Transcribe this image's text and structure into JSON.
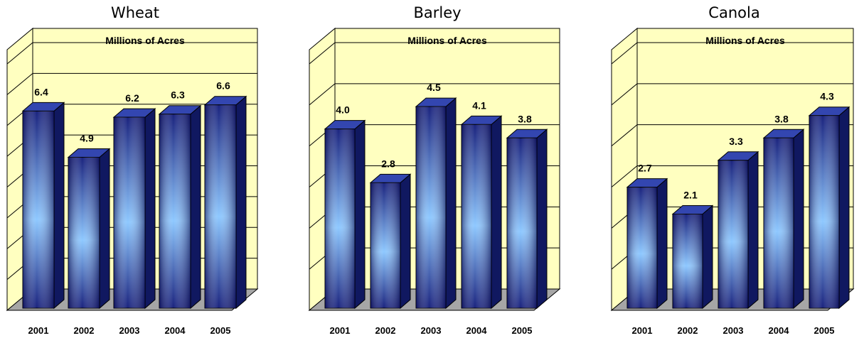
{
  "colors": {
    "wall": "#FFFFC0",
    "floor": "#A6A6A6",
    "grid": "#000000",
    "bar_front_dark": "#1A237E",
    "bar_front_light": "#8EC8FF",
    "bar_side": "#101860",
    "bar_top": "#3346B0"
  },
  "chart_data": [
    {
      "type": "bar",
      "title": "Wheat",
      "unit_label": "Millions of Acres",
      "categories": [
        "2001",
        "2002",
        "2003",
        "2004",
        "2005"
      ],
      "values": [
        6.4,
        4.9,
        6.2,
        6.3,
        6.6
      ],
      "value_labels": [
        "6.4",
        "4.9",
        "6.2",
        "6.3",
        "6.6"
      ],
      "ylim": [
        0,
        8
      ],
      "grid": true,
      "style": "3d-cylinder-like columns"
    },
    {
      "type": "bar",
      "title": "Barley",
      "unit_label": "Millions of Acres",
      "categories": [
        "2001",
        "2002",
        "2003",
        "2004",
        "2005"
      ],
      "values": [
        4.0,
        2.8,
        4.5,
        4.1,
        3.8
      ],
      "value_labels": [
        "4.0",
        "2.8",
        "4.5",
        "4.1",
        "3.8"
      ],
      "ylim": [
        0,
        5.5
      ],
      "grid": true,
      "style": "3d columns"
    },
    {
      "type": "bar",
      "title": "Canola",
      "unit_label": "Millions of Acres",
      "categories": [
        "2001",
        "2002",
        "2003",
        "2004",
        "2005"
      ],
      "values": [
        2.7,
        2.1,
        3.3,
        3.8,
        4.3
      ],
      "value_labels": [
        "2.7",
        "2.1",
        "3.3",
        "3.8",
        "4.3"
      ],
      "ylim": [
        0,
        5.5
      ],
      "grid": true,
      "style": "3d columns"
    }
  ]
}
